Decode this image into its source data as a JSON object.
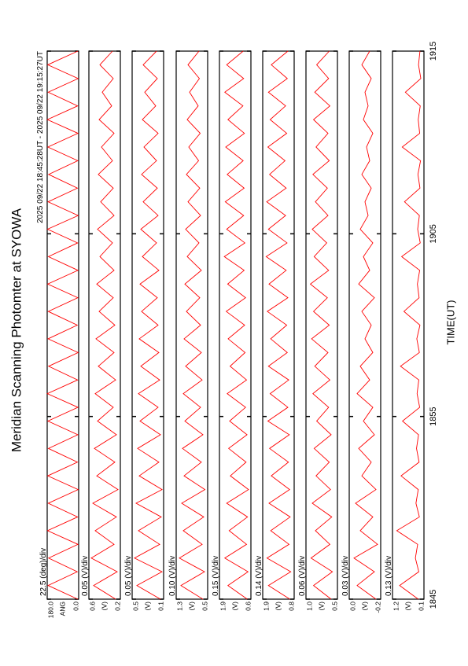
{
  "chart_data": {
    "type": "line",
    "title": "Meridian Scanning Photomter at SYOWA",
    "subtitle": "2025 09/22 18:45:28UT - 2025 09/22 19:15:27UT",
    "xlabel": "TIME(UT)",
    "xlim": [
      0,
      30
    ],
    "xticks": [
      {
        "value": 0,
        "label": "1845"
      },
      {
        "value": 10,
        "label": "1855"
      },
      {
        "value": 20,
        "label": "1905"
      },
      {
        "value": 30,
        "label": "1915"
      }
    ],
    "x": [
      0,
      0.75,
      1.5,
      2.25,
      3,
      3.75,
      4.5,
      5.25,
      6,
      6.75,
      7.5,
      8.25,
      9,
      9.75,
      10.5,
      11.25,
      12,
      12.75,
      13.5,
      14.25,
      15,
      15.75,
      16.5,
      17.25,
      18,
      18.75,
      19.5,
      20.25,
      21,
      21.75,
      22.5,
      23.25,
      24,
      24.75,
      25.5,
      26.25,
      27,
      27.75,
      28.5,
      29.25,
      30
    ],
    "panels": [
      {
        "annotation": "22.5 (deg)/div",
        "ylabel": "ANG",
        "color": "#ff0000",
        "ylim": [
          0,
          180
        ],
        "yticks": [
          {
            "value": 0,
            "label": "0.0"
          },
          {
            "value": 180,
            "label": "180.0"
          }
        ],
        "values": [
          5,
          175,
          8,
          172,
          4,
          178,
          6,
          174,
          3,
          177,
          7,
          173,
          5,
          176,
          4,
          179,
          6,
          172,
          3,
          175,
          8,
          174,
          5,
          177,
          4,
          173,
          6,
          178,
          3,
          175,
          7,
          172,
          5,
          176,
          4,
          179,
          6,
          174,
          3,
          177,
          5
        ]
      },
      {
        "annotation": "0.05 (V)/div",
        "ylabel": "(V)",
        "color": "#ff0000",
        "ylim": [
          0.2,
          0.6
        ],
        "yticks": [
          0.2,
          0.6
        ],
        "values": [
          0.26,
          0.54,
          0.24,
          0.57,
          0.28,
          0.52,
          0.25,
          0.55,
          0.23,
          0.5,
          0.27,
          0.53,
          0.25,
          0.49,
          0.29,
          0.52,
          0.26,
          0.48,
          0.28,
          0.51,
          0.27,
          0.47,
          0.29,
          0.5,
          0.28,
          0.46,
          0.3,
          0.49,
          0.28,
          0.45,
          0.29,
          0.48,
          0.3,
          0.44,
          0.28,
          0.47,
          0.31,
          0.43,
          0.29,
          0.46,
          0.3
        ]
      },
      {
        "annotation": "0.05 (V)/div",
        "ylabel": "(V)",
        "color": "#ff0000",
        "ylim": [
          0.1,
          0.5
        ],
        "yticks": [
          0.1,
          0.5
        ],
        "values": [
          0.14,
          0.44,
          0.12,
          0.47,
          0.15,
          0.42,
          0.13,
          0.45,
          0.12,
          0.41,
          0.16,
          0.43,
          0.14,
          0.4,
          0.17,
          0.42,
          0.15,
          0.39,
          0.16,
          0.41,
          0.17,
          0.38,
          0.18,
          0.4,
          0.16,
          0.37,
          0.19,
          0.39,
          0.17,
          0.36,
          0.18,
          0.38,
          0.19,
          0.35,
          0.17,
          0.37,
          0.2,
          0.34,
          0.18,
          0.36,
          0.19
        ]
      },
      {
        "annotation": "0.10 (V)/div",
        "ylabel": "(V)",
        "color": "#ff0000",
        "ylim": [
          0.5,
          1.3
        ],
        "yticks": [
          0.5,
          1.3
        ],
        "values": [
          0.62,
          1.18,
          0.58,
          1.22,
          0.64,
          1.12,
          0.6,
          1.16,
          0.57,
          1.1,
          0.66,
          1.14,
          0.62,
          1.08,
          0.68,
          1.12,
          0.64,
          1.06,
          0.66,
          1.1,
          0.68,
          1.04,
          0.7,
          1.08,
          0.66,
          1.02,
          0.72,
          1.06,
          0.68,
          1.0,
          0.7,
          1.04,
          0.73,
          0.98,
          0.69,
          1.02,
          0.74,
          0.96,
          0.71,
          1.0,
          0.72
        ]
      },
      {
        "annotation": "0.15 (V)/div",
        "ylabel": "(V)",
        "color": "#ff0000",
        "ylim": [
          0.6,
          1.9
        ],
        "yticks": [
          0.6,
          1.9
        ],
        "values": [
          0.75,
          1.55,
          0.72,
          1.68,
          0.78,
          1.5,
          0.74,
          1.6,
          0.7,
          1.45,
          0.8,
          1.52,
          0.76,
          1.48,
          0.82,
          1.58,
          0.78,
          1.46,
          0.84,
          1.54,
          0.86,
          1.62,
          0.82,
          1.56,
          0.88,
          1.7,
          0.85,
          1.6,
          0.9,
          1.66,
          0.88,
          1.58,
          0.92,
          1.64,
          0.87,
          1.55,
          0.93,
          1.68,
          0.9,
          1.6,
          0.92
        ]
      },
      {
        "annotation": "0.14 (V)/div",
        "ylabel": "(V)",
        "color": "#ff0000",
        "ylim": [
          0.8,
          1.9
        ],
        "yticks": [
          0.8,
          1.9
        ],
        "values": [
          0.95,
          1.7,
          0.92,
          1.75,
          0.98,
          1.62,
          0.94,
          1.68,
          0.96,
          1.6,
          1.0,
          1.66,
          0.97,
          1.72,
          1.02,
          1.64,
          0.99,
          1.7,
          1.04,
          1.62,
          1.06,
          1.74,
          1.02,
          1.68,
          1.08,
          1.78,
          1.05,
          1.7,
          1.1,
          1.76,
          1.08,
          1.66,
          1.12,
          1.72,
          1.06,
          1.64,
          1.1,
          1.7,
          1.04,
          1.6,
          1.02
        ]
      },
      {
        "annotation": "0.06 (V)/div",
        "ylabel": "(V)",
        "color": "#ff0000",
        "ylim": [
          0.5,
          1.0
        ],
        "yticks": [
          0.5,
          {
            "value": 1,
            "label": "1.0"
          }
        ],
        "values": [
          0.6,
          0.88,
          0.58,
          0.92,
          0.62,
          0.85,
          0.59,
          0.9,
          0.61,
          0.84,
          0.63,
          0.87,
          0.6,
          0.83,
          0.64,
          0.89,
          0.62,
          0.86,
          0.65,
          0.91,
          0.63,
          0.88,
          0.66,
          0.93,
          0.64,
          0.87,
          0.67,
          0.9,
          0.65,
          0.85,
          0.66,
          0.89,
          0.63,
          0.84,
          0.65,
          0.88,
          0.62,
          0.86,
          0.64,
          0.83,
          0.63
        ]
      },
      {
        "annotation": "0.03 (V)/div",
        "ylabel": "(V)",
        "color": "#ff0000",
        "ylim": [
          -0.2,
          0
        ],
        "yticks": [
          -0.2,
          {
            "value": 0,
            "label": "0.0"
          }
        ],
        "values": [
          -0.17,
          -0.05,
          -0.16,
          -0.03,
          -0.18,
          -0.07,
          -0.15,
          -0.04,
          -0.17,
          -0.08,
          -0.14,
          -0.06,
          -0.16,
          -0.09,
          -0.15,
          -0.05,
          -0.13,
          -0.07,
          -0.15,
          -0.1,
          -0.14,
          -0.08,
          -0.16,
          -0.06,
          -0.13,
          -0.09,
          -0.15,
          -0.07,
          -0.12,
          -0.1,
          -0.14,
          -0.08,
          -0.13,
          -0.11,
          -0.15,
          -0.09,
          -0.12,
          -0.1,
          -0.14,
          -0.08,
          -0.13
        ]
      },
      {
        "annotation": "0.13 (V)/div",
        "ylabel": "(V)",
        "color": "#ff0000",
        "ylim": [
          0.1,
          1.2
        ],
        "yticks": [
          0.1,
          1.2
        ],
        "values": [
          0.3,
          0.95,
          0.28,
          0.4,
          0.32,
          1.05,
          0.26,
          0.38,
          0.3,
          0.9,
          0.27,
          0.36,
          0.29,
          0.85,
          0.25,
          0.34,
          0.28,
          0.92,
          0.26,
          0.35,
          0.24,
          0.8,
          0.27,
          0.33,
          0.25,
          0.88,
          0.23,
          0.32,
          0.26,
          0.78,
          0.24,
          0.31,
          0.22,
          0.86,
          0.25,
          0.3,
          0.23,
          0.75,
          0.21,
          0.29,
          0.24
        ]
      }
    ]
  }
}
